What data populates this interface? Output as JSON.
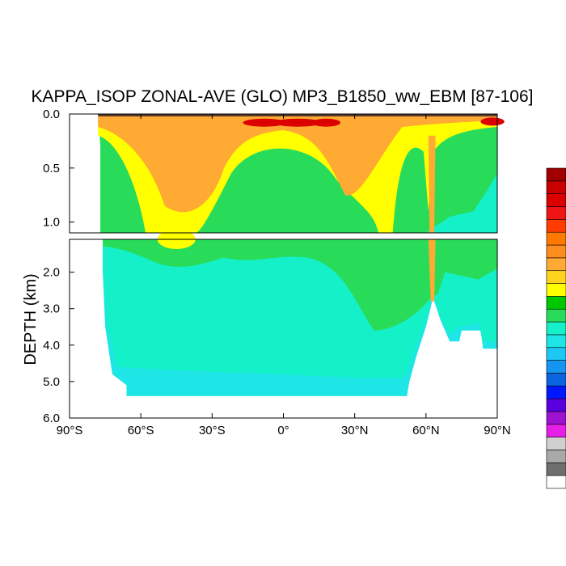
{
  "chart_data": {
    "type": "heatmap",
    "title": "KAPPA_ISOP ZONAL-AVE (GLO) MP3_B1850_ww_EBM [87-106]",
    "xlabel": "",
    "ylabel": "DEPTH (km)",
    "x_ticks": [
      "90°S",
      "60°S",
      "30°S",
      "0°",
      "30°N",
      "60°N",
      "90°N"
    ],
    "x_tick_values": [
      -90,
      -60,
      -30,
      0,
      30,
      60,
      90
    ],
    "x_range": [
      -90,
      90
    ],
    "upper_panel": {
      "y_range": [
        0.0,
        1.1
      ],
      "y_ticks": [
        "0.0",
        "0.5",
        "1.0"
      ],
      "y_tick_values": [
        0.0,
        0.5,
        1.0
      ]
    },
    "lower_panel": {
      "y_range": [
        1.1,
        6.0
      ],
      "y_ticks": [
        "2.0",
        "3.0",
        "4.0",
        "5.0",
        "6.0"
      ],
      "y_tick_values": [
        2.0,
        3.0,
        4.0,
        5.0,
        6.0
      ]
    },
    "y_reversed": true,
    "colorbar": {
      "orientation": "vertical",
      "position": "right",
      "colors": [
        "#ffffff",
        "#6e6e6e",
        "#a8a8a8",
        "#d0d0d0",
        "#e61ee6",
        "#9c12d0",
        "#5a00e0",
        "#0018ff",
        "#0a64e0",
        "#1496f0",
        "#1ec8f5",
        "#1ee6e6",
        "#14f0c8",
        "#28dc5a",
        "#00c800",
        "#ffff00",
        "#ffd21e",
        "#ffaa32",
        "#ff8c1e",
        "#ff7800",
        "#ff3c00",
        "#f01414",
        "#dc0000",
        "#c80000",
        "#a00000"
      ]
    },
    "regions": {
      "ocean_fill": "#14f0c8",
      "deep_fill": "#1ee6e6",
      "mid_fill": "#28dc5a",
      "upper_fill": "#ffff00",
      "high_fill": "#ffaa32",
      "peak_fill": "#dc0000",
      "land": "#ffffff"
    }
  }
}
